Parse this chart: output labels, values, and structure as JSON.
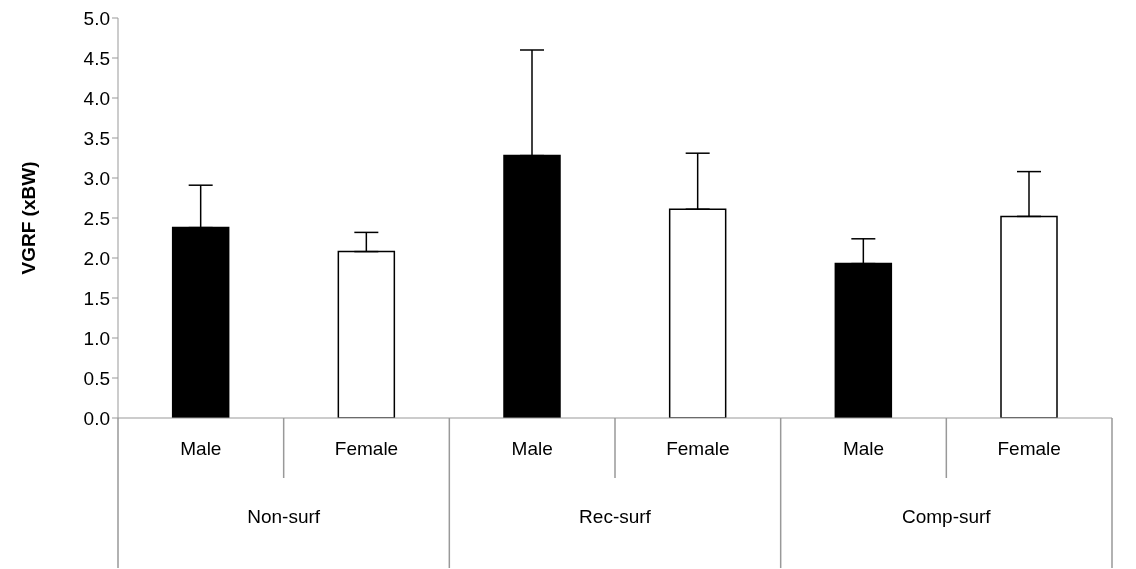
{
  "chart_data": {
    "type": "bar",
    "ylabel": "VGRF (xBW)",
    "categories": [
      "Male",
      "Female",
      "Male",
      "Female",
      "Male",
      "Female"
    ],
    "values": [
      2.38,
      2.08,
      3.28,
      2.61,
      1.93,
      2.52
    ],
    "colors": [
      "#000000",
      "#ffffff",
      "#000000",
      "#ffffff",
      "#000000",
      "#ffffff"
    ],
    "errors": [
      [
        2.38,
        2.91
      ],
      [
        2.08,
        2.32
      ],
      [
        3.28,
        4.6
      ],
      [
        2.61,
        3.31
      ],
      [
        1.93,
        2.24
      ],
      [
        2.52,
        3.08
      ]
    ],
    "annotations": [
      "Non-surf",
      "Rec-surf",
      "Comp-surf"
    ],
    "ylim": [
      0,
      5
    ],
    "yticks": [
      {
        "value": 0,
        "label": "0.0"
      },
      {
        "value": 0.5,
        "label": "0.5"
      },
      {
        "value": 1,
        "label": "1.0"
      },
      {
        "value": 1.5,
        "label": "1.5"
      },
      {
        "value": 2,
        "label": "2.0"
      },
      {
        "value": 2.5,
        "label": "2.5"
      },
      {
        "value": 3,
        "label": "3.0"
      },
      {
        "value": 3.5,
        "label": "3.5"
      },
      {
        "value": 4,
        "label": "4.0"
      },
      {
        "value": 4.5,
        "label": "4.5"
      },
      {
        "value": 5,
        "label": "5.0"
      }
    ],
    "grid": false,
    "legend": false
  }
}
